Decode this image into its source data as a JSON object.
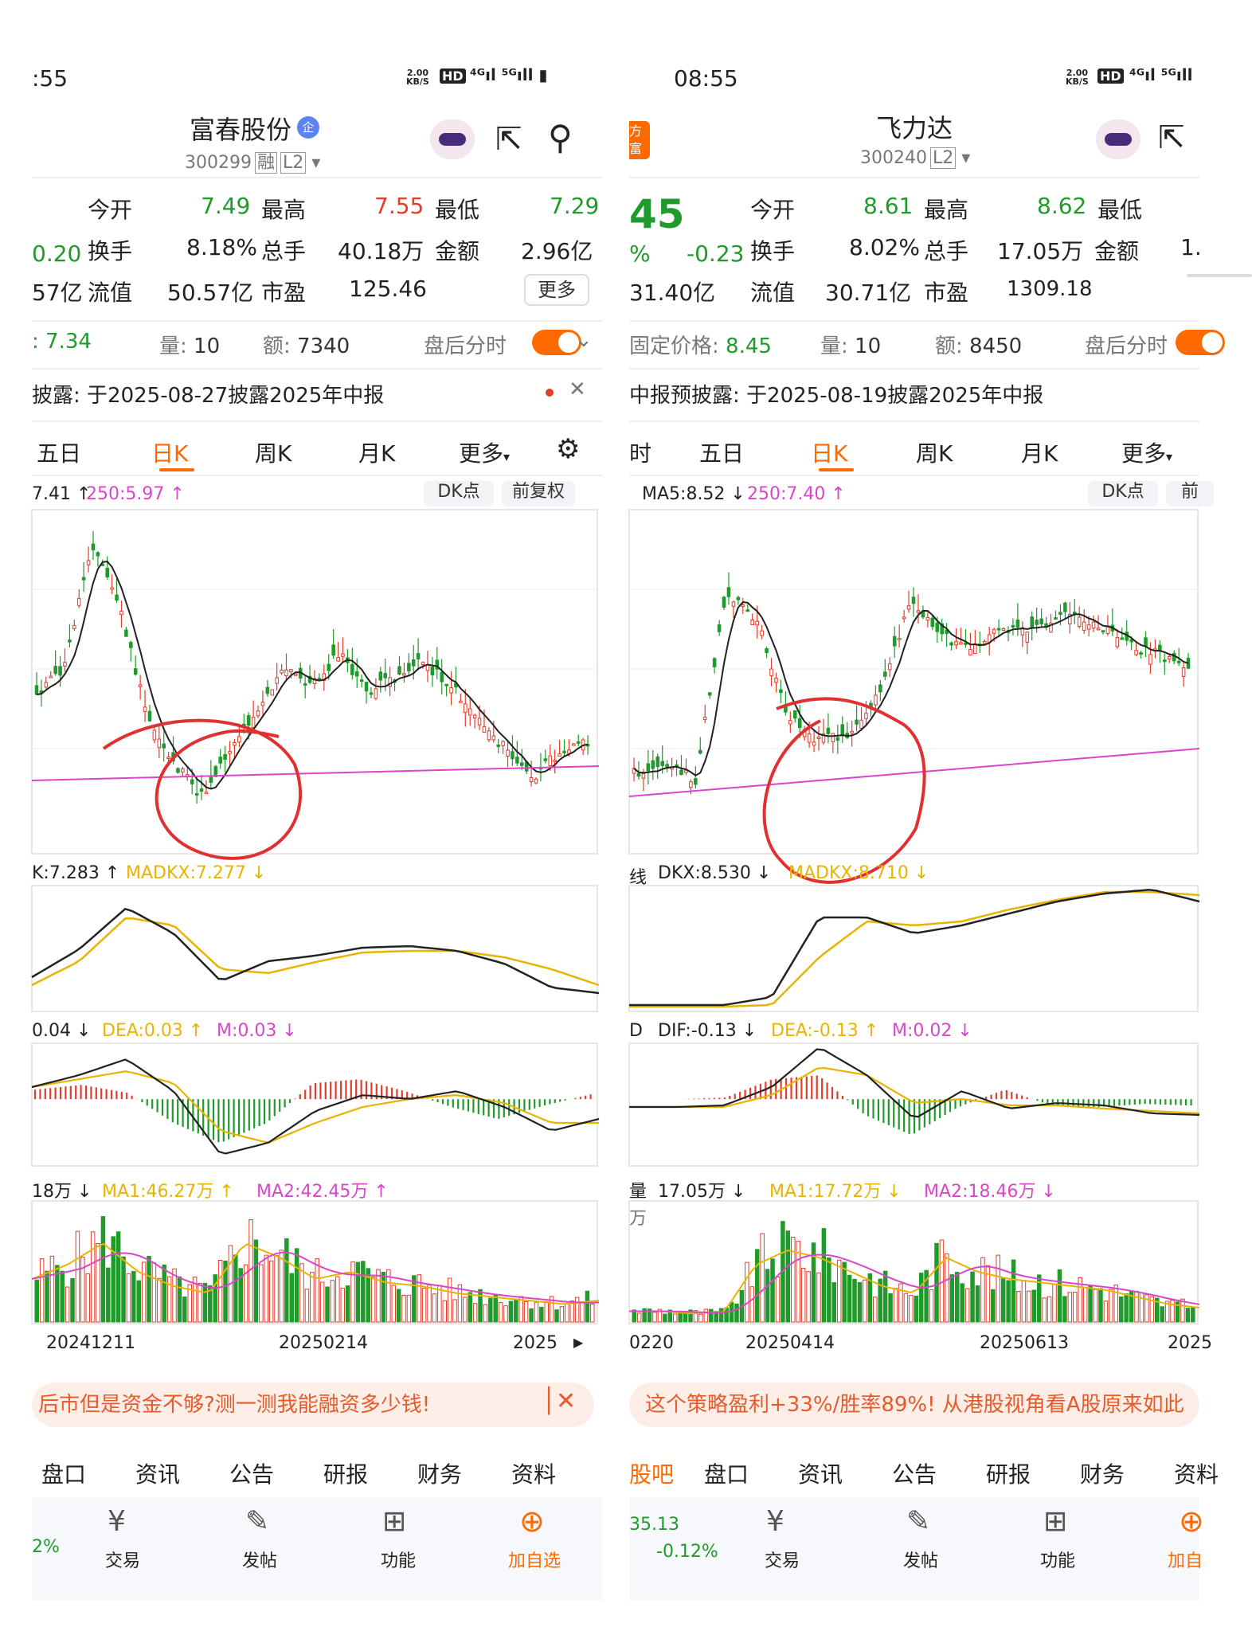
{
  "left": {
    "status_time": ":55",
    "speed": "2.00\nKB/S",
    "title": "富春股份",
    "code": "300299",
    "badge": "融",
    "level": "L2",
    "row1": {
      "l1": "今开",
      "v1": "7.49",
      "l2": "最高",
      "v2": "7.55",
      "l3": "最低",
      "v3": "7.29"
    },
    "row2": {
      "pre": "0.20",
      "l1": "换手",
      "v1": "8.18%",
      "l2": "总手",
      "v2": "40.18万",
      "l3": "金额",
      "v3": "2.96亿"
    },
    "row3": {
      "pre": "57亿",
      "l1": "流值",
      "v1": "50.57亿",
      "l2": "市盈",
      "v2": "125.46",
      "more": "更多"
    },
    "after": {
      "price": ": 7.34",
      "vol_label": "量:",
      "vol": "10",
      "amt_label": "额:",
      "amt": "7340",
      "label": "盘后分时"
    },
    "notice": "披露:  于2025-08-27披露2025年中报",
    "tabs": [
      "五日",
      "日K",
      "周K",
      "月K",
      "更多"
    ],
    "ma_line": {
      "a": "7.41 ↑",
      "b": "250:5.97 ↑"
    },
    "dk_btn": "DK点",
    "fq_btn": "前复权",
    "dkx_line": {
      "a": "K:7.283 ↑",
      "b": "MADKX:7.277 ↓"
    },
    "macd_line": {
      "a": "0.04 ↓",
      "b": "DEA:0.03 ↑",
      "c": "M:0.03 ↓"
    },
    "vol_line": {
      "a": "18万 ↓",
      "b": "MA1:46.27万 ↑",
      "c": "MA2:42.45万 ↑"
    },
    "dates": [
      "20241211",
      "20250214",
      "2025"
    ],
    "ad": "后市但是资金不够?测一测我能融资多少钱!",
    "bottom_tabs": [
      "盘口",
      "资讯",
      "公告",
      "研报",
      "财务",
      "资料"
    ],
    "pct": "2%",
    "actions": [
      "交易",
      "发帖",
      "功能",
      "加自选"
    ]
  },
  "right": {
    "status_time": "08:55",
    "speed": "2.00\nKB/S",
    "title": "飞力达",
    "code": "300240",
    "level": "L2",
    "logo": "方\n富",
    "price_frag": "45",
    "row1": {
      "l1": "今开",
      "v1": "8.61",
      "l2": "最高",
      "v2": "8.62",
      "l3": "最低"
    },
    "row2": {
      "pre": "%",
      "chg": "-0.23",
      "l1": "换手",
      "v1": "8.02%",
      "l2": "总手",
      "v2": "17.05万",
      "l3": "金额",
      "v3": "1."
    },
    "row3": {
      "pre": "31.40亿",
      "l1": "流值",
      "v1": "30.71亿",
      "l2": "市盈",
      "v2": "1309.18"
    },
    "after": {
      "price_label": "固定价格:",
      "price": "8.45",
      "vol_label": "量:",
      "vol": "10",
      "amt_label": "额:",
      "amt": "8450",
      "label": "盘后分时"
    },
    "notice": "中报预披露:  于2025-08-19披露2025年中报",
    "tabs": [
      "时",
      "五日",
      "日K",
      "周K",
      "月K",
      "更多"
    ],
    "ma_line": {
      "a": "MA5:8.52 ↓",
      "b": "250:7.40 ↑"
    },
    "dk_btn": "DK点",
    "fq_btn": "前",
    "dkx_line": {
      "a": "线",
      "b": "DKX:8.530 ↓",
      "c": "MADKX:8.710 ↓"
    },
    "macd_line": {
      "a": "D",
      "b": "DIF:-0.13 ↓",
      "c": "DEA:-0.13 ↑",
      "d": "M:0.02 ↓"
    },
    "vol_line": {
      "a": "量",
      "b": "17.05万 ↓",
      "c": "MA1:17.72万 ↓",
      "d": "MA2:18.46万 ↓"
    },
    "vol_axis": "万",
    "dates": [
      "0220",
      "20250414",
      "20250613",
      "2025"
    ],
    "ad": "这个策略盈利+33%/胜率89%! 从港股视角看A股原来如此",
    "bottom_tabs": [
      "股吧",
      "盘口",
      "资讯",
      "公告",
      "研报",
      "财务",
      "资料"
    ],
    "index_val": "35.13",
    "index_pct": "-0.12%",
    "actions": [
      "交易",
      "发帖",
      "功能",
      "加自"
    ]
  },
  "colors": {
    "up": "#e23d2c",
    "down": "#1f9a2b",
    "accent": "#ff6a00",
    "ma_yellow": "#e8b400",
    "ma_pink": "#d946c8",
    "annot": "#e03030"
  }
}
